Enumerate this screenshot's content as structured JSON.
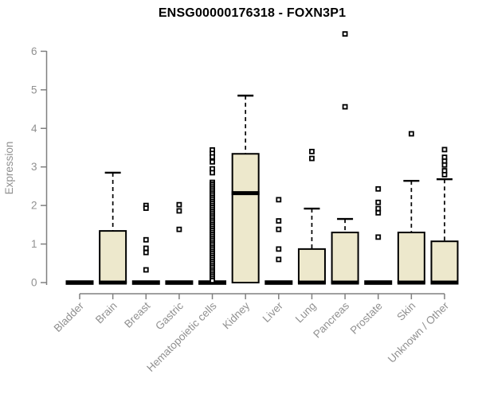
{
  "title": "ENSG00000176318 - FOXN3P1",
  "chart_data": {
    "type": "boxplot",
    "title": "ENSG00000176318 - FOXN3P1",
    "ylabel": "Expression",
    "xlabel": "",
    "ylim": [
      0,
      6.6
    ],
    "yticks": [
      0,
      1,
      2,
      3,
      4,
      5,
      6
    ],
    "grid": false,
    "legend": "none",
    "categories": [
      "Bladder",
      "Brain",
      "Breast",
      "Gastric",
      "Hematopoietic cells",
      "Kidney",
      "Liver",
      "Lung",
      "Pancreas",
      "Prostate",
      "Skin",
      "Unknown / Other"
    ],
    "series": [
      {
        "category": "Bladder",
        "q1": 0,
        "median": 0,
        "q3": 0,
        "whisker_low": 0,
        "whisker_high": 0,
        "outliers": []
      },
      {
        "category": "Brain",
        "q1": 0,
        "median": 0,
        "q3": 1.34,
        "whisker_low": 0,
        "whisker_high": 2.85,
        "outliers": []
      },
      {
        "category": "Breast",
        "q1": 0,
        "median": 0,
        "q3": 0,
        "whisker_low": 0,
        "whisker_high": 0,
        "outliers": [
          2.0,
          1.93,
          1.11,
          0.89,
          0.78,
          0.33
        ]
      },
      {
        "category": "Gastric",
        "q1": 0,
        "median": 0,
        "q3": 0,
        "whisker_low": 0,
        "whisker_high": 0,
        "outliers": [
          2.02,
          1.86,
          1.38
        ]
      },
      {
        "category": "Hematopoietic cells",
        "q1": 0,
        "median": 0,
        "q3": 0,
        "whisker_low": 0,
        "whisker_high": 0,
        "outliers": [
          3.44,
          3.35,
          3.26,
          3.13,
          2.95,
          2.85,
          2.6,
          2.55,
          2.5,
          2.45,
          2.4,
          2.35,
          2.3,
          2.25,
          2.2,
          2.15,
          2.1,
          2.05,
          2.0,
          1.95,
          1.9,
          1.85,
          1.8,
          1.75,
          1.7,
          1.65,
          1.6,
          1.55,
          1.5,
          1.45,
          1.4,
          1.35,
          1.3,
          1.25,
          1.2,
          1.15,
          1.1,
          1.05,
          1.0,
          0.95,
          0.9,
          0.85,
          0.8,
          0.75,
          0.7,
          0.65,
          0.6,
          0.55,
          0.5,
          0.45,
          0.4,
          0.35,
          0.3,
          0.25,
          0.2,
          0.15,
          0.1,
          0.05
        ]
      },
      {
        "category": "Kidney",
        "q1": 0,
        "median": 2.32,
        "q3": 3.34,
        "whisker_low": 0,
        "whisker_high": 4.85,
        "outliers": []
      },
      {
        "category": "Liver",
        "q1": 0,
        "median": 0,
        "q3": 0,
        "whisker_low": 0,
        "whisker_high": 0,
        "outliers": [
          2.15,
          1.6,
          1.38,
          0.87,
          0.6
        ]
      },
      {
        "category": "Lung",
        "q1": 0,
        "median": 0,
        "q3": 0.87,
        "whisker_low": 0,
        "whisker_high": 1.92,
        "outliers": [
          3.4,
          3.22
        ]
      },
      {
        "category": "Pancreas",
        "q1": 0,
        "median": 0,
        "q3": 1.3,
        "whisker_low": 0,
        "whisker_high": 1.65,
        "outliers": [
          6.45,
          4.56
        ]
      },
      {
        "category": "Prostate",
        "q1": 0,
        "median": 0,
        "q3": 0,
        "whisker_low": 0,
        "whisker_high": 0,
        "outliers": [
          2.43,
          2.08,
          1.92,
          1.81,
          1.18
        ]
      },
      {
        "category": "Skin",
        "q1": 0,
        "median": 0,
        "q3": 1.3,
        "whisker_low": 0,
        "whisker_high": 2.64,
        "outliers": [
          3.86
        ]
      },
      {
        "category": "Unknown / Other",
        "q1": 0,
        "median": 0,
        "q3": 1.07,
        "whisker_low": 0,
        "whisker_high": 2.68,
        "outliers": [
          3.45,
          3.25,
          3.15,
          3.05,
          2.9,
          2.8
        ]
      }
    ],
    "colors": {
      "box_fill": "#EDE8CC",
      "box_stroke": "#000000",
      "median": "#000000",
      "whisker": "#000000",
      "outlier_stroke": "#000000",
      "axis": "#808080",
      "tick_label": "#909090",
      "title": "#000000",
      "background": "#ffffff"
    }
  }
}
